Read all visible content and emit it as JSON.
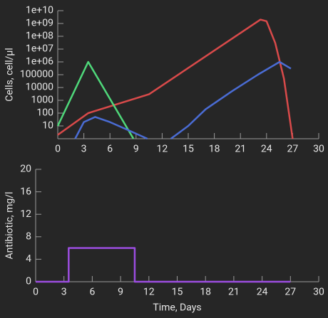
{
  "chart_data": [
    {
      "type": "line",
      "ylog": true,
      "ylabel": "Cells, cell/µl",
      "xlim": [
        0,
        30
      ],
      "xticks": [
        0,
        3,
        6,
        9,
        12,
        15,
        18,
        21,
        24,
        27,
        30
      ],
      "ylim": [
        1,
        10000000000
      ],
      "yticks": [
        10,
        100,
        1000,
        10000,
        100000,
        {
          "value": 1000000,
          "label": "1e+06"
        },
        {
          "value": 10000000,
          "label": "1e+07"
        },
        {
          "value": 100000000,
          "label": "1e+08"
        },
        {
          "value": 1000000000,
          "label": "1e+09"
        },
        {
          "value": 10000000000,
          "label": "1e+10"
        }
      ],
      "series": [
        {
          "color": "#d94a4a",
          "x": [
            0,
            3.5,
            10.5,
            23.3,
            24,
            25,
            26,
            27
          ],
          "values": [
            2,
            100,
            3000,
            2000000000,
            1500000000,
            30000000,
            50000,
            1
          ]
        },
        {
          "color": "#4fd87a",
          "x": [
            0,
            3.5,
            8.7
          ],
          "values": [
            10,
            1000000,
            1
          ]
        },
        {
          "color": "#4a6cd4",
          "x": [
            2,
            3,
            4.3,
            6,
            8,
            10.3,
            null,
            13,
            15,
            17,
            20,
            23,
            25.5,
            26.8
          ],
          "values": [
            1,
            20,
            50,
            20,
            5,
            1,
            null,
            1,
            10,
            200,
            5000,
            100000,
            1000000,
            300000
          ]
        }
      ]
    },
    {
      "type": "line",
      "ylog": false,
      "ylabel": "Antibiotic, mg/l",
      "xlabel": "Time, Days",
      "xlim": [
        0,
        30
      ],
      "xticks": [
        0,
        3,
        6,
        9,
        12,
        15,
        18,
        21,
        24,
        27,
        30
      ],
      "ylim": [
        0,
        20
      ],
      "yticks": [
        0,
        4,
        8,
        12,
        16,
        20
      ],
      "series": [
        {
          "color": "#9b4de0",
          "x": [
            0,
            3.5,
            3.5,
            10.5,
            10.5,
            27
          ],
          "values": [
            0,
            0,
            6,
            6,
            0,
            0
          ]
        }
      ]
    }
  ]
}
